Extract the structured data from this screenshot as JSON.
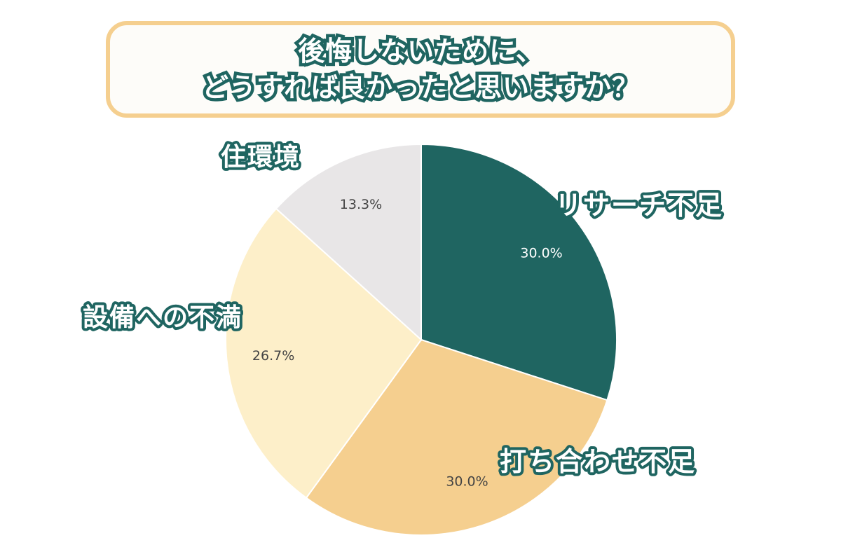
{
  "title": {
    "line1": "後悔しないために、",
    "line2": "どうすれば良かったと思いますか？"
  },
  "chart_data": {
    "type": "pie",
    "categories": [
      "リサーチ不足",
      "打ち合わせ不足",
      "設備への不満",
      "住環境"
    ],
    "values": [
      30.0,
      30.0,
      26.7,
      13.3
    ],
    "value_labels": [
      "30.0%",
      "30.0%",
      "26.7%",
      "13.3%"
    ],
    "colors": [
      "#1f6561",
      "#f5cf8f",
      "#fdefc9",
      "#e8e6e7"
    ],
    "value_label_colors": [
      "#ffffff",
      "#444444",
      "#444444",
      "#444444"
    ],
    "start": "12 o'clock",
    "direction": "clockwise"
  }
}
